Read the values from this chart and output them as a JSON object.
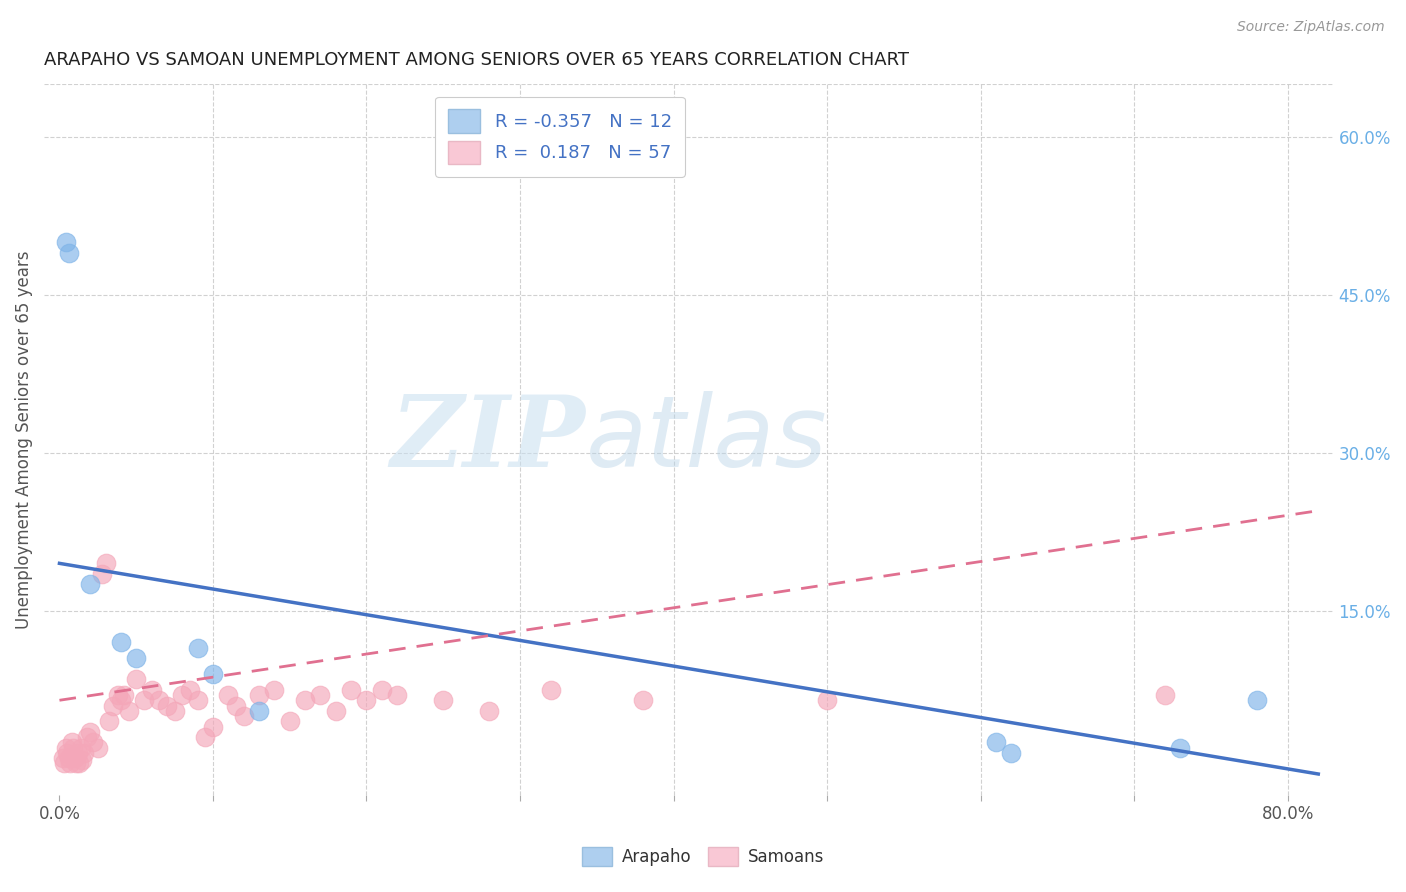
{
  "title": "ARAPAHO VS SAMOAN UNEMPLOYMENT AMONG SENIORS OVER 65 YEARS CORRELATION CHART",
  "source": "Source: ZipAtlas.com",
  "ylabel": "Unemployment Among Seniors over 65 years",
  "xlim": [
    -0.01,
    0.83
  ],
  "ylim": [
    -0.025,
    0.65
  ],
  "xticks": [
    0.0,
    0.1,
    0.2,
    0.3,
    0.4,
    0.5,
    0.6,
    0.7,
    0.8
  ],
  "xticklabels": [
    "0.0%",
    "",
    "",
    "",
    "",
    "",
    "",
    "",
    "80.0%"
  ],
  "yticks_right": [
    0.0,
    0.15,
    0.3,
    0.45,
    0.6
  ],
  "yticklabels_right": [
    "",
    "15.0%",
    "30.0%",
    "45.0%",
    "60.0%"
  ],
  "arapaho_color": "#7EB3E8",
  "samoan_color": "#F4A7B9",
  "arapaho_line_color": "#4472c4",
  "samoan_line_color": "#e07090",
  "arapaho_R": -0.357,
  "arapaho_N": 12,
  "samoan_R": 0.187,
  "samoan_N": 57,
  "arapaho_x": [
    0.004,
    0.006,
    0.02,
    0.04,
    0.05,
    0.09,
    0.1,
    0.13,
    0.61,
    0.62,
    0.73,
    0.78
  ],
  "arapaho_y": [
    0.5,
    0.49,
    0.175,
    0.12,
    0.105,
    0.115,
    0.09,
    0.055,
    0.025,
    0.015,
    0.02,
    0.065
  ],
  "samoan_x": [
    0.002,
    0.003,
    0.004,
    0.005,
    0.006,
    0.007,
    0.008,
    0.009,
    0.01,
    0.011,
    0.012,
    0.013,
    0.014,
    0.015,
    0.016,
    0.018,
    0.02,
    0.022,
    0.025,
    0.028,
    0.03,
    0.032,
    0.035,
    0.038,
    0.04,
    0.042,
    0.045,
    0.05,
    0.055,
    0.06,
    0.065,
    0.07,
    0.075,
    0.08,
    0.085,
    0.09,
    0.095,
    0.1,
    0.11,
    0.115,
    0.12,
    0.13,
    0.14,
    0.15,
    0.16,
    0.17,
    0.18,
    0.19,
    0.2,
    0.21,
    0.22,
    0.25,
    0.28,
    0.32,
    0.38,
    0.5,
    0.72
  ],
  "samoan_y": [
    0.01,
    0.005,
    0.02,
    0.015,
    0.01,
    0.005,
    0.025,
    0.02,
    0.01,
    0.005,
    0.015,
    0.005,
    0.02,
    0.008,
    0.015,
    0.03,
    0.035,
    0.025,
    0.02,
    0.185,
    0.195,
    0.045,
    0.06,
    0.07,
    0.065,
    0.07,
    0.055,
    0.085,
    0.065,
    0.075,
    0.065,
    0.06,
    0.055,
    0.07,
    0.075,
    0.065,
    0.03,
    0.04,
    0.07,
    0.06,
    0.05,
    0.07,
    0.075,
    0.045,
    0.065,
    0.07,
    0.055,
    0.075,
    0.065,
    0.075,
    0.07,
    0.065,
    0.055,
    0.075,
    0.065,
    0.065,
    0.07
  ],
  "arap_line_x0": 0.0,
  "arap_line_y0": 0.195,
  "arap_line_x1": 0.82,
  "arap_line_y1": -0.005,
  "sam_line_x0": 0.0,
  "sam_line_y0": 0.065,
  "sam_line_x1": 0.82,
  "sam_line_y1": 0.245,
  "watermark_zip": "ZIP",
  "watermark_atlas": "atlas",
  "background_color": "#ffffff",
  "grid_color": "#cccccc",
  "title_color": "#222222",
  "axis_label_color": "#555555",
  "tick_color_right": "#6aafe6",
  "tick_color_bottom": "#555555"
}
